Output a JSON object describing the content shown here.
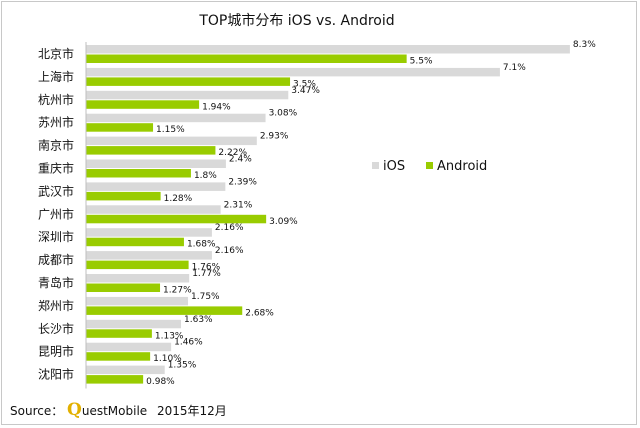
{
  "chart_data": {
    "type": "bar",
    "orientation": "horizontal",
    "title": "TOP城市分布 iOS vs. Android",
    "categories": [
      "北京市",
      "上海市",
      "杭州市",
      "苏州市",
      "南京市",
      "重庆市",
      "武汉市",
      "广州市",
      "深圳市",
      "成都市",
      "青岛市",
      "郑州市",
      "长沙市",
      "昆明市",
      "沈阳市"
    ],
    "series": [
      {
        "name": "iOS",
        "color": "#d9d9d9",
        "values": [
          8.3,
          7.1,
          3.47,
          3.08,
          2.93,
          2.4,
          2.39,
          2.31,
          2.16,
          2.16,
          1.77,
          1.75,
          1.63,
          1.46,
          1.35
        ],
        "labels": [
          "8.3%",
          "7.1%",
          "3.47%",
          "3.08%",
          "2.93%",
          "2.4%",
          "2.39%",
          "2.31%",
          "2.16%",
          "2.16%",
          "1.77%",
          "1.75%",
          "1.63%",
          "1.46%",
          "1.35%"
        ]
      },
      {
        "name": "Android",
        "color": "#99cc00",
        "values": [
          5.5,
          3.5,
          1.94,
          1.15,
          2.22,
          1.8,
          1.28,
          3.09,
          1.68,
          1.76,
          1.27,
          2.68,
          1.13,
          1.1,
          0.98
        ],
        "labels": [
          "5.5%",
          "3.5%",
          "1.94%",
          "1.15%",
          "2.22%",
          "1.8%",
          "1.28%",
          "3.09%",
          "1.68%",
          "1.76%",
          "1.27%",
          "2.68%",
          "1.13%",
          "1.10%",
          "0.98%"
        ]
      }
    ],
    "xlim": [
      0,
      8.3
    ],
    "legend": "right",
    "grid": false
  },
  "source": {
    "prefix": "Source：",
    "brand_q": "Q",
    "brand_rest": "uestMobile",
    "date": "2015年12月"
  }
}
